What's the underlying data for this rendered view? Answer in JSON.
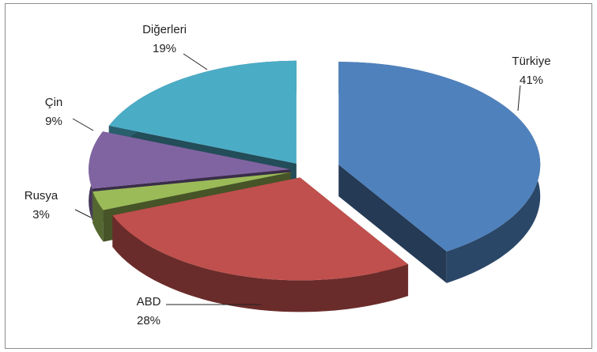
{
  "chart_data": {
    "type": "pie",
    "categories": [
      "Türkiye",
      "ABD",
      "Rusya",
      "Çin",
      "Diğerleri"
    ],
    "values": [
      41,
      28,
      3,
      9,
      19
    ],
    "value_labels": [
      "41%",
      "28%",
      "3%",
      "9%",
      "19%"
    ],
    "colors": [
      "#4f81bd",
      "#c0504d",
      "#9bbb59",
      "#8064a2",
      "#4bacc6"
    ]
  }
}
